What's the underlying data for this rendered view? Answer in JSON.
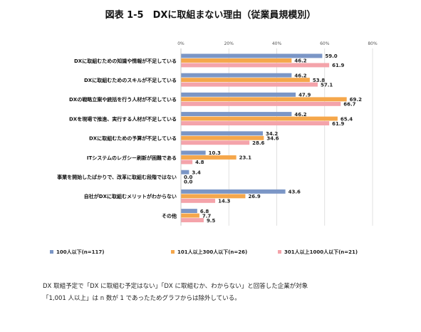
{
  "chart_data": {
    "type": "bar",
    "orientation": "horizontal",
    "title": "図表 1-5　DXに取組まない理由（従業員規模別）",
    "categories": [
      "DXに取組むための知識や情報が不足している",
      "DXに取組むためのスキルが不足している",
      "DXの戦略立案や統括を行う人材が不足している",
      "DXを現場で推進、実行する人材が不足している",
      "DXに取組むための予算が不足している",
      "ITシステムのレガシー刷新が困難である",
      "事業を開始したばかりで、改革に取組む段階ではない",
      "自社がDXに取組むメリットがわからない",
      "その他"
    ],
    "series": [
      {
        "name": "100人以下(n=117)",
        "color": "#7B96C6",
        "values": [
          59.0,
          46.2,
          47.9,
          46.2,
          34.2,
          10.3,
          3.4,
          43.6,
          6.8
        ]
      },
      {
        "name": "101人以上300人以下(n=26)",
        "color": "#F5A74B",
        "values": [
          46.2,
          53.8,
          69.2,
          65.4,
          34.6,
          23.1,
          0.0,
          26.9,
          7.7
        ]
      },
      {
        "name": "301人以上1000人以下(n=21)",
        "color": "#F4A3AA",
        "values": [
          61.9,
          57.1,
          66.7,
          61.9,
          28.6,
          4.8,
          0.0,
          14.3,
          9.5
        ]
      }
    ],
    "ticks": [
      "0%",
      "20%",
      "40%",
      "60%",
      "80%"
    ],
    "xlim": [
      0,
      80
    ],
    "grid": true,
    "legend_position": "bottom"
  },
  "notes": [
    "DX 取組予定で「DX に取組む予定はない」「DX に取組むか、わからない」と回答した企業が対象",
    "「1,001 人以上」は n 数が 1 であったためグラフからは除外している。"
  ]
}
